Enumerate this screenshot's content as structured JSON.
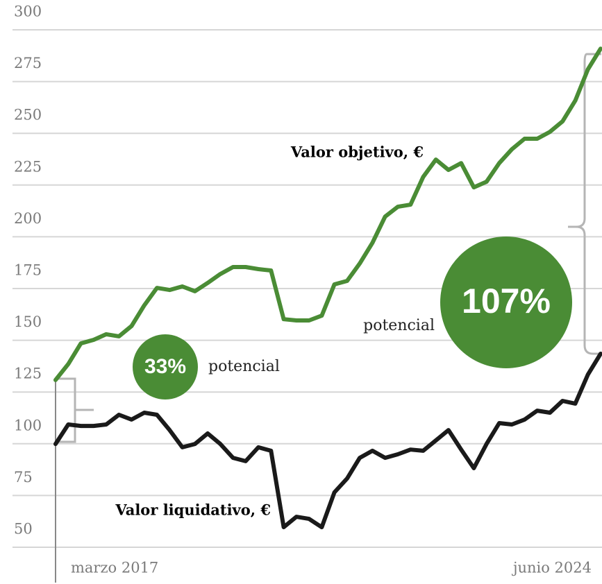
{
  "chart_data": {
    "type": "line",
    "categories": [
      "marzo 2017",
      null,
      null,
      null,
      null,
      null,
      null,
      null,
      null,
      null,
      null,
      null,
      null,
      null,
      null,
      null,
      null,
      null,
      null,
      null,
      null,
      null,
      null,
      null,
      null,
      null,
      null,
      null,
      null,
      null,
      null,
      null,
      null,
      null,
      null,
      null,
      null,
      null,
      null,
      null,
      null,
      null,
      null,
      "junio 2024"
    ],
    "series": [
      {
        "name": "Valor objetivo, €",
        "color": "#4a8c35",
        "values": [
          130.8,
          138.5,
          148.5,
          150.2,
          152.9,
          151.9,
          156.9,
          166.9,
          175.3,
          174.3,
          176.0,
          173.7,
          177.7,
          182.0,
          185.4,
          185.4,
          184.4,
          183.7,
          160.2,
          159.6,
          159.6,
          161.9,
          177.0,
          178.7,
          187.1,
          197.1,
          209.8,
          214.5,
          215.5,
          228.9,
          237.3,
          232.3,
          235.6,
          223.9,
          226.6,
          235.6,
          242.3,
          247.4,
          247.4,
          250.7,
          255.8,
          265.8,
          280.9,
          290.9
        ]
      },
      {
        "name": "Valor liquidativo, €",
        "color": "#1a1a1a",
        "values": [
          99.9,
          109.3,
          108.6,
          108.6,
          109.3,
          114.0,
          111.7,
          115.0,
          114.0,
          106.6,
          98.3,
          99.9,
          105.0,
          99.9,
          93.2,
          91.6,
          98.3,
          96.6,
          59.7,
          64.7,
          63.7,
          59.7,
          76.5,
          83.2,
          93.2,
          96.6,
          93.2,
          94.9,
          97.2,
          96.6,
          101.6,
          106.6,
          97.2,
          88.2,
          99.9,
          110.0,
          109.3,
          111.7,
          116.0,
          115.0,
          120.7,
          119.4,
          133.4,
          143.5
        ]
      }
    ],
    "ylim": [
      50,
      300
    ],
    "yticks": [
      50,
      75,
      100,
      125,
      150,
      175,
      200,
      225,
      250,
      275,
      300
    ],
    "grid": true,
    "annotations": [
      "33%",
      "potencial",
      "107%",
      "potencial"
    ]
  }
}
